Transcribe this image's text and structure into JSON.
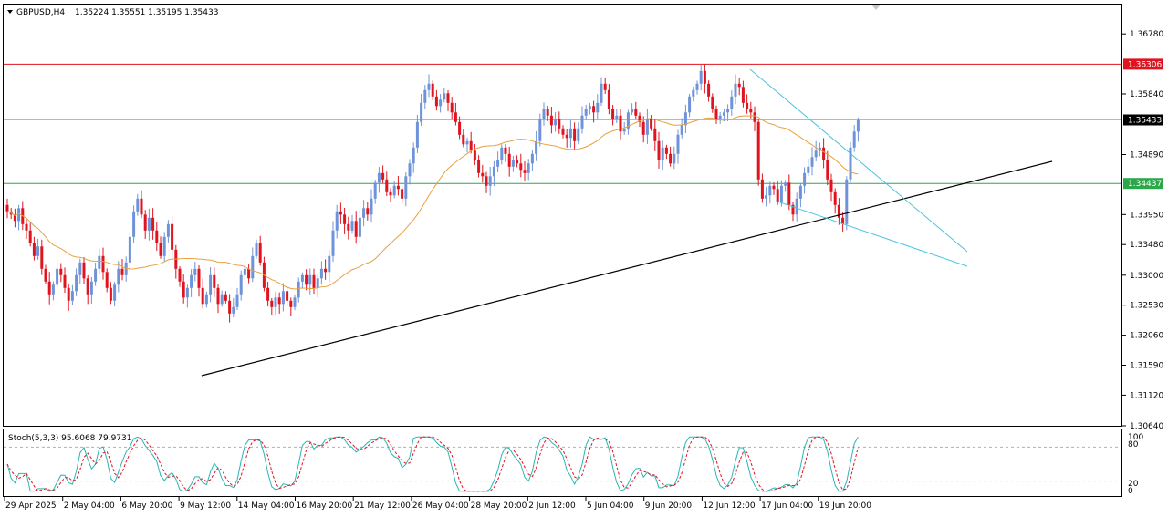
{
  "header": {
    "symbol": "GBPUSD,H4",
    "ohlc": "1.35224 1.35551 1.35195 1.35433"
  },
  "indicator": {
    "label": "Stoch(5,3,3) 95.6068 79.9731",
    "scale": [
      "100",
      "80",
      "20",
      "0"
    ]
  },
  "colors": {
    "bull": "#6f93d8",
    "bear": "#e0141e",
    "ma": "#e8a040",
    "resistance": "#e0141e",
    "support": "#2aa84a",
    "trendline": "#000000",
    "wedge": "#45c6e0",
    "stoch_main": "#2bb5b5",
    "stoch_signal": "#e0141e",
    "current_price": "#000000"
  },
  "chart_data": {
    "type": "candlestick",
    "symbol": "GBPUSD",
    "timeframe": "H4",
    "ylim": [
      1.3064,
      1.3724
    ],
    "y_ticks": [
      "1.36780",
      "1.35840",
      "1.34890",
      "1.33950",
      "1.33480",
      "1.33000",
      "1.32530",
      "1.32060",
      "1.31590",
      "1.31120",
      "1.30640"
    ],
    "x_labels": [
      "29 Apr 2025",
      "2 May 04:00",
      "6 May 20:00",
      "9 May 12:00",
      "14 May 04:00",
      "16 May 20:00",
      "21 May 12:00",
      "26 May 04:00",
      "28 May 20:00",
      "2 Jun 12:00",
      "5 Jun 04:00",
      "9 Jun 20:00",
      "12 Jun 12:00",
      "17 Jun 04:00",
      "19 Jun 20:00"
    ],
    "price_levels": [
      {
        "name": "resistance",
        "value": 1.36306,
        "label": "1.36306"
      },
      {
        "name": "support",
        "value": 1.34437,
        "label": "1.34437"
      },
      {
        "name": "current",
        "value": 1.35433,
        "label": "1.35433"
      }
    ],
    "ma_period_visible": true,
    "closes": [
      1.34,
      1.3395,
      1.3385,
      1.3405,
      1.338,
      1.337,
      1.335,
      1.333,
      1.3345,
      1.331,
      1.329,
      1.327,
      1.3285,
      1.331,
      1.33,
      1.328,
      1.326,
      1.3275,
      1.33,
      1.332,
      1.3295,
      1.327,
      1.329,
      1.331,
      1.333,
      1.3305,
      1.328,
      1.326,
      1.3285,
      1.331,
      1.33,
      1.332,
      1.336,
      1.34,
      1.342,
      1.3395,
      1.337,
      1.339,
      1.337,
      1.335,
      1.333,
      1.336,
      1.338,
      1.334,
      1.331,
      1.329,
      1.3265,
      1.328,
      1.33,
      1.331,
      1.328,
      1.3255,
      1.327,
      1.33,
      1.328,
      1.3255,
      1.327,
      1.326,
      1.324,
      1.325,
      1.327,
      1.33,
      1.331,
      1.3295,
      1.333,
      1.335,
      1.332,
      1.328,
      1.326,
      1.325,
      1.3265,
      1.3255,
      1.3275,
      1.326,
      1.325,
      1.3265,
      1.329,
      1.33,
      1.3285,
      1.33,
      1.328,
      1.3295,
      1.331,
      1.3305,
      1.333,
      1.337,
      1.34,
      1.3395,
      1.338,
      1.337,
      1.3385,
      1.336,
      1.339,
      1.3405,
      1.3395,
      1.342,
      1.3445,
      1.346,
      1.345,
      1.343,
      1.3425,
      1.344,
      1.3435,
      1.342,
      1.3455,
      1.3475,
      1.35,
      1.354,
      1.357,
      1.359,
      1.36,
      1.358,
      1.3565,
      1.3575,
      1.3585,
      1.357,
      1.3555,
      1.354,
      1.352,
      1.3505,
      1.351,
      1.3495,
      1.348,
      1.346,
      1.3455,
      1.344,
      1.3455,
      1.347,
      1.348,
      1.35,
      1.349,
      1.347,
      1.348,
      1.3475,
      1.3465,
      1.346,
      1.3475,
      1.349,
      1.351,
      1.3545,
      1.356,
      1.355,
      1.3535,
      1.3545,
      1.353,
      1.352,
      1.3515,
      1.353,
      1.351,
      1.353,
      1.355,
      1.356,
      1.3565,
      1.3555,
      1.357,
      1.36,
      1.359,
      1.356,
      1.3545,
      1.355,
      1.3525,
      1.353,
      1.3555,
      1.356,
      1.355,
      1.354,
      1.352,
      1.3545,
      1.353,
      1.351,
      1.348,
      1.35,
      1.349,
      1.3475,
      1.349,
      1.352,
      1.3535,
      1.3555,
      1.358,
      1.359,
      1.36,
      1.362,
      1.36,
      1.358,
      1.356,
      1.3545,
      1.355,
      1.3555,
      1.356,
      1.358,
      1.36,
      1.3595,
      1.357,
      1.356,
      1.3555,
      1.354,
      1.345,
      1.342,
      1.3425,
      1.344,
      1.3435,
      1.3415,
      1.344,
      1.3445,
      1.341,
      1.3395,
      1.342,
      1.344,
      1.346,
      1.347,
      1.3485,
      1.3495,
      1.35,
      1.348,
      1.345,
      1.343,
      1.341,
      1.339,
      1.338,
      1.345,
      1.35,
      1.3525,
      1.3543
    ]
  }
}
